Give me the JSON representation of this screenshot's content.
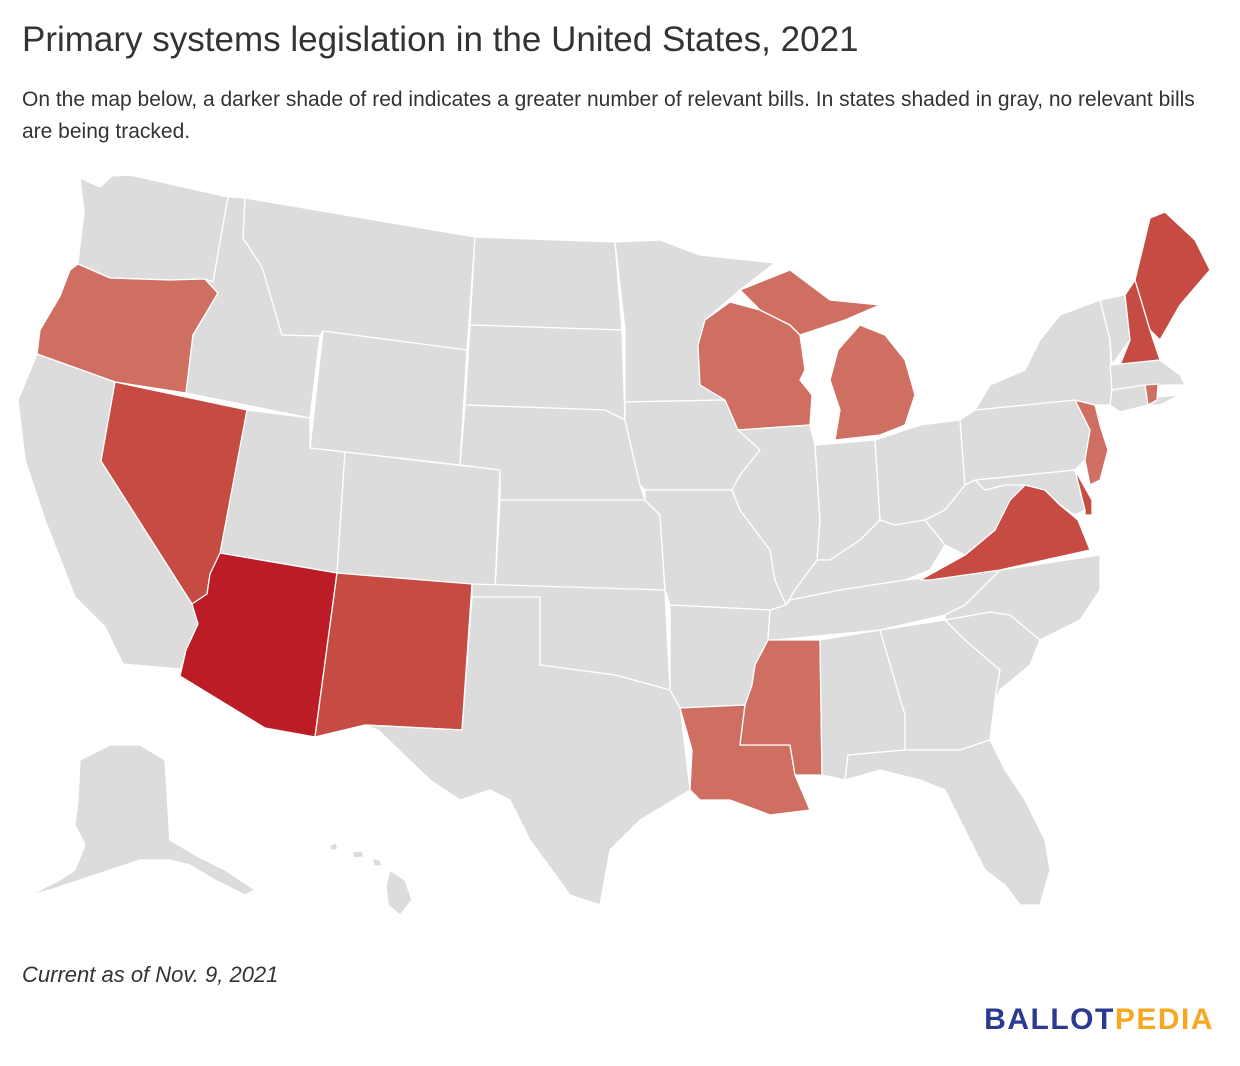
{
  "title": "Primary systems legislation in the United States, 2021",
  "subtitle": "On the map below, a darker shade of red indicates a greater number of relevant bills. In states shaded in gray, no relevant bills are being tracked.",
  "footnote": "Current as of Nov. 9, 2021",
  "logo": {
    "part1": "BALLOT",
    "part2": "PEDIA"
  },
  "colors": {
    "none": "#dcdcdc",
    "low": "#cf6f62",
    "medium": "#c64b43",
    "high": "#bb1c25",
    "logo_blue": "#2b3990",
    "logo_gold": "#f7a823"
  },
  "states": {
    "WA": "none",
    "OR": "low",
    "CA": "none",
    "NV": "medium",
    "ID": "none",
    "MT": "none",
    "WY": "none",
    "UT": "none",
    "AZ": "high",
    "CO": "none",
    "NM": "medium",
    "ND": "none",
    "SD": "none",
    "NE": "none",
    "KS": "none",
    "OK": "none",
    "TX": "none",
    "MN": "none",
    "IA": "none",
    "MO": "none",
    "AR": "none",
    "LA": "low",
    "WI": "low",
    "IL": "none",
    "MI": "low",
    "IN": "none",
    "OH": "none",
    "KY": "none",
    "TN": "none",
    "MS": "low",
    "AL": "none",
    "GA": "none",
    "FL": "none",
    "SC": "none",
    "NC": "none",
    "VA": "medium",
    "WV": "none",
    "MD": "none",
    "DE": "medium",
    "PA": "none",
    "NJ": "low",
    "NY": "none",
    "CT": "none",
    "RI": "low",
    "MA": "none",
    "VT": "none",
    "NH": "medium",
    "ME": "medium",
    "AK": "none",
    "HI": "none"
  }
}
